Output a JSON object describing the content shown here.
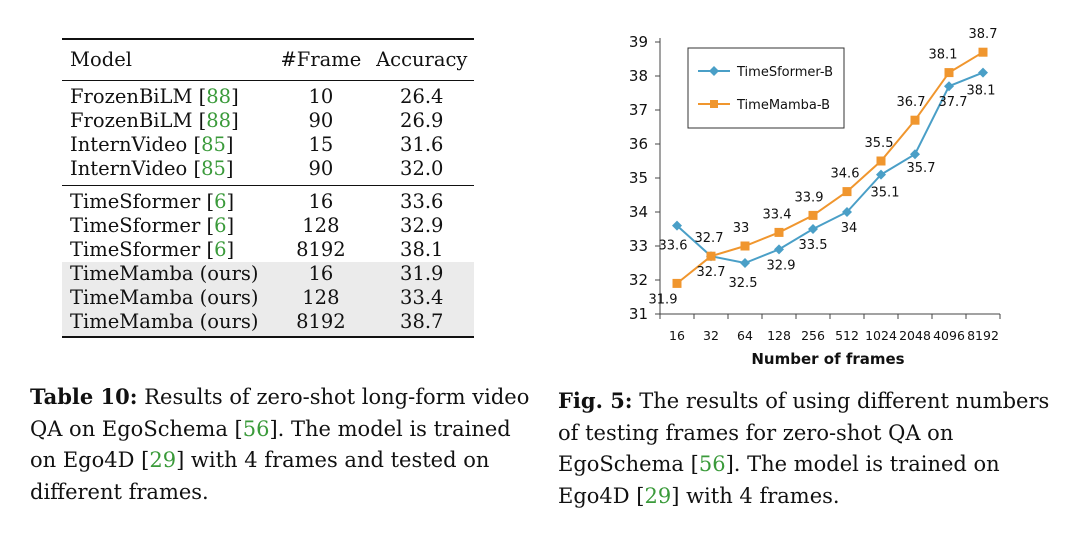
{
  "table": {
    "headers": {
      "model": "Model",
      "frame": "#Frame",
      "accuracy": "Accuracy"
    },
    "groups": [
      {
        "rows": [
          {
            "model": "FrozenBiLM",
            "cite": "88",
            "frames": "10",
            "accuracy": "26.4"
          },
          {
            "model": "FrozenBiLM",
            "cite": "88",
            "frames": "90",
            "accuracy": "26.9"
          },
          {
            "model": "InternVideo",
            "cite": "85",
            "frames": "15",
            "accuracy": "31.6"
          },
          {
            "model": "InternVideo",
            "cite": "85",
            "frames": "90",
            "accuracy": "32.0"
          }
        ]
      },
      {
        "rows": [
          {
            "model": "TimeSformer",
            "cite": "6",
            "frames": "16",
            "accuracy": "33.6"
          },
          {
            "model": "TimeSformer",
            "cite": "6",
            "frames": "128",
            "accuracy": "32.9"
          },
          {
            "model": "TimeSformer",
            "cite": "6",
            "frames": "8192",
            "accuracy": "38.1"
          },
          {
            "model": "TimeMamba (ours)",
            "frames": "16",
            "accuracy": "31.9"
          },
          {
            "model": "TimeMamba (ours)",
            "frames": "128",
            "accuracy": "33.4"
          },
          {
            "model": "TimeMamba (ours)",
            "frames": "8192",
            "accuracy": "38.7"
          }
        ]
      }
    ]
  },
  "captions": {
    "table": {
      "label": "Table 10:",
      "text_1": " Results of zero-shot long-form video QA on EgoSchema [",
      "cite_1": "56",
      "text_2": "]. The model is trained on Ego4D [",
      "cite_2": "29",
      "text_3": "] with 4 frames and tested on different frames."
    },
    "figure": {
      "label": "Fig. 5:",
      "text_1": " The results of using different numbers of testing frames for zero-shot QA on EgoSchema [",
      "cite_1": "56",
      "text_2": "]. The model is trained on Ego4D [",
      "cite_2": "29",
      "text_3": "] with 4 frames."
    }
  },
  "chart_data": {
    "type": "line",
    "title": "",
    "xlabel": "Number of frames",
    "ylabel": "",
    "categories": [
      "16",
      "32",
      "64",
      "128",
      "256",
      "512",
      "1024",
      "2048",
      "4096",
      "8192"
    ],
    "ylim": [
      31,
      39
    ],
    "yticks": [
      "31",
      "32",
      "33",
      "34",
      "35",
      "36",
      "37",
      "38",
      "39"
    ],
    "legend_position": "top-left",
    "series": [
      {
        "name": "TimeSformer-B",
        "color": "#4a9fc7",
        "marker": "diamond",
        "values": [
          33.6,
          32.7,
          32.5,
          32.9,
          33.5,
          34,
          35.1,
          35.7,
          37.7,
          38.1
        ],
        "labels": [
          "33.6",
          "32.7",
          "32.5",
          "32.9",
          "33.5",
          "34",
          "35.1",
          "35.7",
          "37.7",
          "38.1"
        ]
      },
      {
        "name": "TimeMamba-B",
        "color": "#f0962e",
        "marker": "square",
        "values": [
          31.9,
          32.7,
          33,
          33.4,
          33.9,
          34.6,
          35.5,
          36.7,
          38.1,
          38.7
        ],
        "labels": [
          "31.9",
          "32.7",
          "33",
          "33.4",
          "33.9",
          "34.6",
          "35.5",
          "36.7",
          "38.1",
          "38.7"
        ]
      }
    ]
  }
}
